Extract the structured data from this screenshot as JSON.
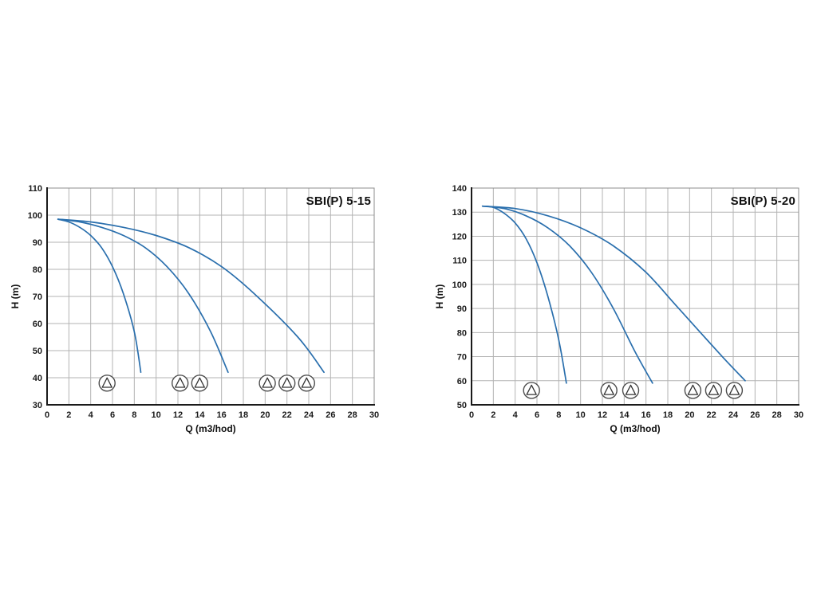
{
  "page": {
    "background": "#ffffff"
  },
  "chart_data": [
    {
      "type": "line",
      "title": "SBI(P) 5-15",
      "xlabel": "Q (m3/hod)",
      "ylabel": "H (m)",
      "xlim": [
        0,
        30
      ],
      "ylim": [
        30,
        110
      ],
      "xtick_step": 2,
      "ytick_step": 10,
      "grid": true,
      "legend_position": "none",
      "curve_color": "#2a6fad",
      "series": [
        {
          "name": "1-pump",
          "points": [
            [
              1,
              98.5
            ],
            [
              2,
              97.5
            ],
            [
              3,
              95.5
            ],
            [
              4,
              92.5
            ],
            [
              5,
              88
            ],
            [
              6,
              81
            ],
            [
              7,
              71
            ],
            [
              8,
              57
            ],
            [
              8.6,
              42
            ]
          ]
        },
        {
          "name": "2-pumps",
          "points": [
            [
              1,
              98.5
            ],
            [
              3,
              97.5
            ],
            [
              5,
              95.5
            ],
            [
              7,
              92.5
            ],
            [
              9,
              88
            ],
            [
              11,
              81
            ],
            [
              13,
              71
            ],
            [
              15,
              57
            ],
            [
              16.6,
              42
            ]
          ]
        },
        {
          "name": "3-pumps",
          "points": [
            [
              1,
              98.5
            ],
            [
              4,
              97.5
            ],
            [
              7,
              95.5
            ],
            [
              10,
              92.5
            ],
            [
              13,
              88
            ],
            [
              16,
              81
            ],
            [
              19,
              71
            ],
            [
              23,
              55
            ],
            [
              25.4,
              42
            ]
          ]
        }
      ],
      "pump_icons": {
        "h": 38,
        "groups": [
          [
            5.5
          ],
          [
            12.2,
            14.0
          ],
          [
            20.2,
            22.0,
            23.8
          ]
        ]
      }
    },
    {
      "type": "line",
      "title": "SBI(P) 5-20",
      "xlabel": "Q (m3/hod)",
      "ylabel": "H (m)",
      "xlim": [
        0,
        30
      ],
      "ylim": [
        50,
        140
      ],
      "xtick_step": 2,
      "ytick_step": 10,
      "grid": true,
      "legend_position": "none",
      "curve_color": "#2a6fad",
      "series": [
        {
          "name": "1-pump",
          "points": [
            [
              1,
              132.5
            ],
            [
              2,
              132
            ],
            [
              3,
              129.5
            ],
            [
              4,
              125.5
            ],
            [
              5,
              119
            ],
            [
              6,
              109
            ],
            [
              7,
              95
            ],
            [
              8,
              77
            ],
            [
              8.7,
              59
            ]
          ]
        },
        {
          "name": "2-pumps",
          "points": [
            [
              1,
              132.5
            ],
            [
              3,
              131.5
            ],
            [
              5,
              128.5
            ],
            [
              7,
              123.5
            ],
            [
              9,
              116
            ],
            [
              11,
              105
            ],
            [
              13,
              90
            ],
            [
              15,
              72
            ],
            [
              16.6,
              59
            ]
          ]
        },
        {
          "name": "3-pumps",
          "points": [
            [
              1,
              132.5
            ],
            [
              4,
              131.5
            ],
            [
              7,
              128.5
            ],
            [
              10,
              123.5
            ],
            [
              13,
              116
            ],
            [
              16,
              105
            ],
            [
              19,
              90
            ],
            [
              23,
              70
            ],
            [
              25.1,
              60
            ]
          ]
        }
      ],
      "pump_icons": {
        "h": 56,
        "groups": [
          [
            5.5
          ],
          [
            12.6,
            14.6
          ],
          [
            20.3,
            22.2,
            24.1
          ]
        ]
      }
    }
  ]
}
